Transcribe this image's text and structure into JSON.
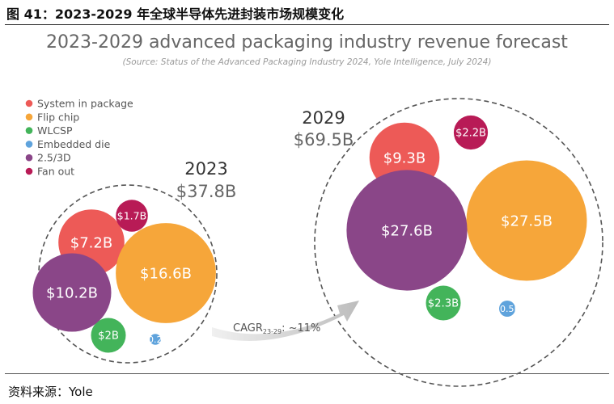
{
  "figure": {
    "title": "图 41：2023-2029 年全球半导体先进封装市场规模变化",
    "source": "资料来源：Yole"
  },
  "chart_data": {
    "type": "bubble",
    "title": "2023-2029 advanced packaging industry revenue forecast",
    "subtitle": "(Source: Status of the Advanced Packaging Industry 2024, Yole Intelligence, July 2024)",
    "unit": "$B",
    "categories": [
      "System in package",
      "Flip chip",
      "WLCSP",
      "Embedded die",
      "2.5/3D",
      "Fan out"
    ],
    "colors": {
      "System in package": "#ed5a57",
      "Flip chip": "#f6a63a",
      "WLCSP": "#43b45a",
      "Embedded die": "#5fa3dc",
      "2.5/3D": "#8a4688",
      "Fan out": "#b81b56"
    },
    "series": [
      {
        "name": "2023",
        "total": 37.8,
        "total_label": "$37.8B",
        "values": [
          {
            "category": "System in package",
            "value": 7.2,
            "label": "$7.2B"
          },
          {
            "category": "Flip chip",
            "value": 16.6,
            "label": "$16.6B"
          },
          {
            "category": "WLCSP",
            "value": 2.0,
            "label": "$2B"
          },
          {
            "category": "Embedded die",
            "value": 0.2,
            "label": "$0.2B"
          },
          {
            "category": "2.5/3D",
            "value": 10.2,
            "label": "$10.2B"
          },
          {
            "category": "Fan out",
            "value": 1.7,
            "label": "$1.7B"
          }
        ]
      },
      {
        "name": "2029",
        "total": 69.5,
        "total_label": "$69.5B",
        "values": [
          {
            "category": "System in package",
            "value": 9.3,
            "label": "$9.3B"
          },
          {
            "category": "Flip chip",
            "value": 27.5,
            "label": "$27.5B"
          },
          {
            "category": "WLCSP",
            "value": 2.3,
            "label": "$2.3B"
          },
          {
            "category": "Embedded die",
            "value": 0.5,
            "label": "$0.5B"
          },
          {
            "category": "2.5/3D",
            "value": 27.6,
            "label": "$27.6B"
          },
          {
            "category": "Fan out",
            "value": 2.2,
            "label": "$2.2B"
          }
        ]
      }
    ],
    "cagr": {
      "prefix": "CAGR",
      "sub": "23-29",
      "text": ": ~11%"
    }
  }
}
